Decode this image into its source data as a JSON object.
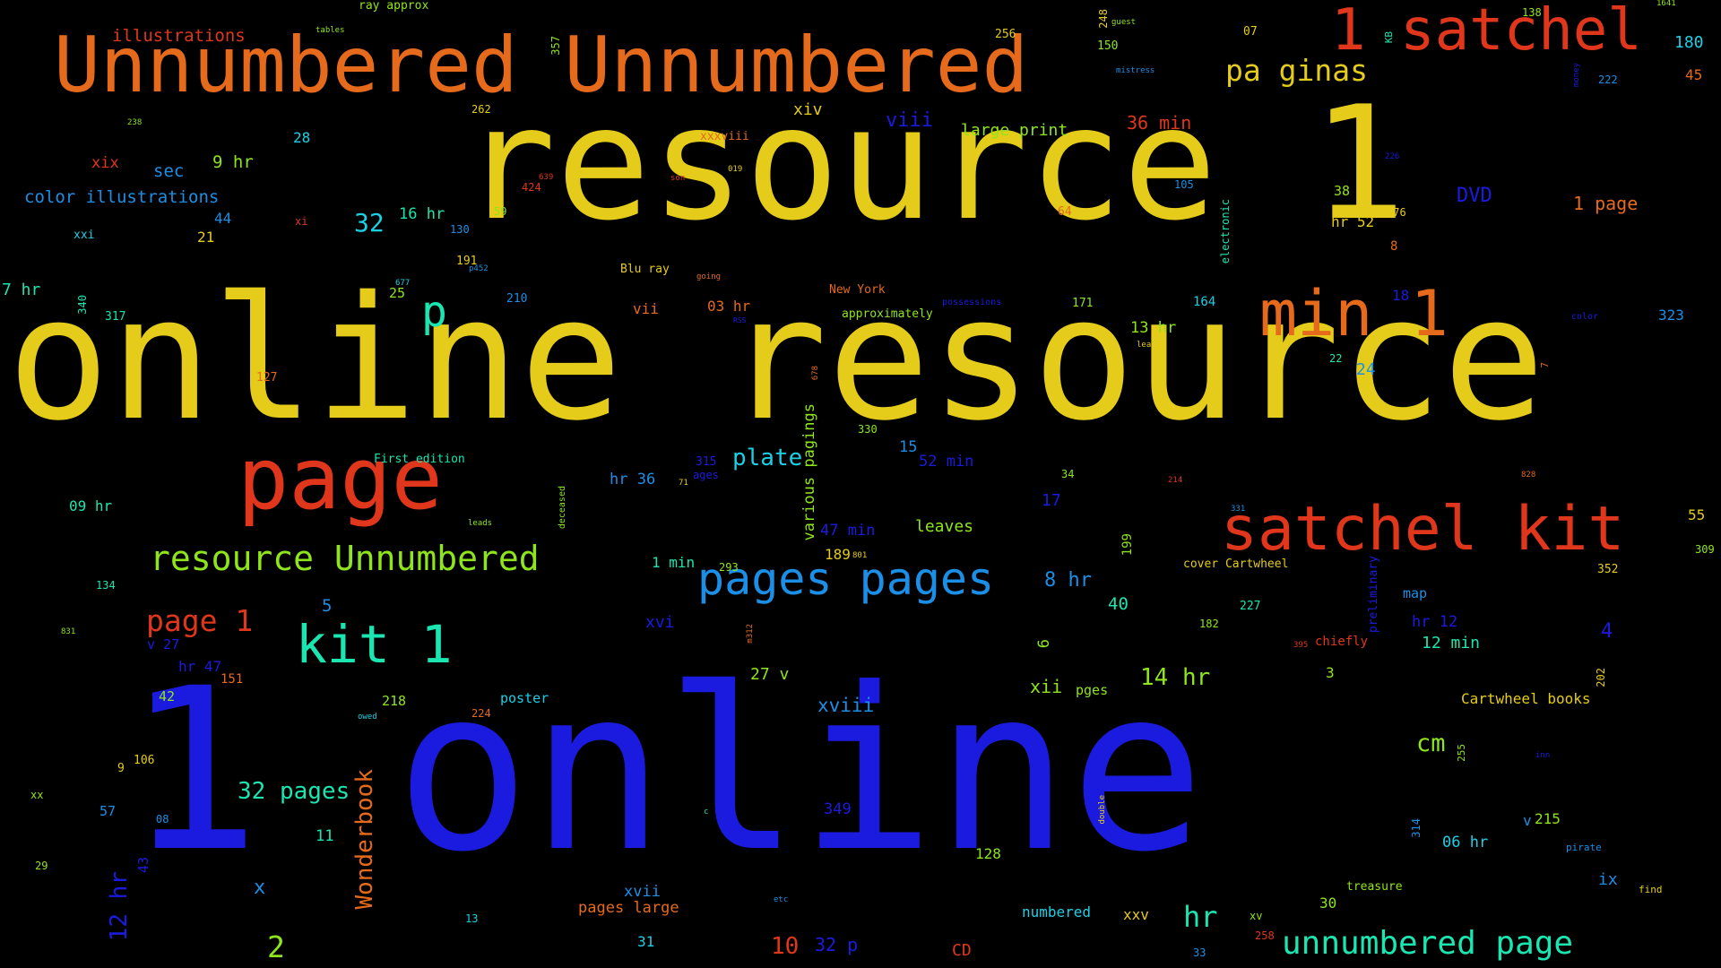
{
  "palette": {
    "yellow": "#e5cc1a",
    "blue": "#1b1be0",
    "red": "#e0361b",
    "orange": "#e56a1b",
    "green": "#8fe51b",
    "teal": "#1be5b0",
    "lightblue": "#1b8fe5",
    "cyan": "#1bd0e5"
  },
  "words": [
    {
      "text": "online resource"
    },
    {
      "text": "1 online"
    },
    {
      "text": "resource 1"
    },
    {
      "text": "Unnumbered Unnumbered"
    },
    {
      "text": "page"
    },
    {
      "text": "satchel kit"
    },
    {
      "text": "1 satchel"
    },
    {
      "text": "min 1"
    },
    {
      "text": "kit 1"
    },
    {
      "text": "pages pages"
    },
    {
      "text": "resource Unnumbered"
    },
    {
      "text": "unnumbered page"
    },
    {
      "text": "p"
    },
    {
      "text": "pa ginas"
    },
    {
      "text": "page 1"
    },
    {
      "text": "2"
    },
    {
      "text": "10"
    },
    {
      "text": "32 pages"
    },
    {
      "text": "hr"
    },
    {
      "text": "cm"
    },
    {
      "text": "Wonderbook"
    },
    {
      "text": "12 hr"
    },
    {
      "text": "plate"
    },
    {
      "text": "14 hr"
    },
    {
      "text": "32"
    },
    {
      "text": "DVD"
    },
    {
      "text": "illustrations"
    },
    {
      "text": "color illustrations"
    },
    {
      "text": "large print"
    },
    {
      "text": "36 min"
    },
    {
      "text": "viii"
    },
    {
      "text": "xiv"
    },
    {
      "text": "180"
    },
    {
      "text": "45"
    },
    {
      "text": "1 page"
    },
    {
      "text": "9 hr"
    },
    {
      "text": "sec"
    },
    {
      "text": "xix"
    },
    {
      "text": "28"
    },
    {
      "text": "16 hr"
    },
    {
      "text": "44"
    },
    {
      "text": "21"
    },
    {
      "text": "xxi"
    },
    {
      "text": "7 hr"
    },
    {
      "text": "25"
    },
    {
      "text": "317"
    },
    {
      "text": "340"
    },
    {
      "text": "127"
    },
    {
      "text": "09 hr"
    },
    {
      "text": "First edition"
    },
    {
      "text": "various pagings"
    },
    {
      "text": "hr 36"
    },
    {
      "text": "ages"
    },
    {
      "text": "315"
    },
    {
      "text": "52 min"
    },
    {
      "text": "15"
    },
    {
      "text": "47 min"
    },
    {
      "text": "leaves"
    },
    {
      "text": "189"
    },
    {
      "text": "1 min"
    },
    {
      "text": "293"
    },
    {
      "text": "8 hr"
    },
    {
      "text": "17"
    },
    {
      "text": "40"
    },
    {
      "text": "5"
    },
    {
      "text": "xvi"
    },
    {
      "text": "v 27"
    },
    {
      "text": "hr 47"
    },
    {
      "text": "151"
    },
    {
      "text": "42"
    },
    {
      "text": "218"
    },
    {
      "text": "poster"
    },
    {
      "text": "224"
    },
    {
      "text": "27 v"
    },
    {
      "text": "xviii"
    },
    {
      "text": "xii"
    },
    {
      "text": "pges"
    },
    {
      "text": "9"
    },
    {
      "text": "106"
    },
    {
      "text": "xx"
    },
    {
      "text": "57"
    },
    {
      "text": "08"
    },
    {
      "text": "43"
    },
    {
      "text": "29"
    },
    {
      "text": "11"
    },
    {
      "text": "x"
    },
    {
      "text": "13"
    },
    {
      "text": "xvii"
    },
    {
      "text": "pages large"
    },
    {
      "text": "31"
    },
    {
      "text": "32 p"
    },
    {
      "text": "CD"
    },
    {
      "text": "349"
    },
    {
      "text": "128"
    },
    {
      "text": "numbered"
    },
    {
      "text": "xxv"
    },
    {
      "text": "33"
    },
    {
      "text": "258"
    },
    {
      "text": "xv"
    },
    {
      "text": "treasure"
    },
    {
      "text": "30"
    },
    {
      "text": "06 hr"
    },
    {
      "text": "v"
    },
    {
      "text": "215"
    },
    {
      "text": "pirate"
    },
    {
      "text": "ix"
    },
    {
      "text": "find"
    },
    {
      "text": "314"
    },
    {
      "text": "Cartwheel books"
    },
    {
      "text": "202"
    },
    {
      "text": "3"
    },
    {
      "text": "12 min"
    },
    {
      "text": "hr 12"
    },
    {
      "text": "map"
    },
    {
      "text": "4"
    },
    {
      "text": "chiefly"
    },
    {
      "text": "395"
    },
    {
      "text": "preliminary"
    },
    {
      "text": "182"
    },
    {
      "text": "227"
    },
    {
      "text": "cover Cartwheel"
    },
    {
      "text": "352"
    },
    {
      "text": "309"
    },
    {
      "text": "55"
    },
    {
      "text": "199"
    },
    {
      "text": "801"
    },
    {
      "text": "13 hr"
    },
    {
      "text": "24"
    },
    {
      "text": "22"
    },
    {
      "text": "leaf"
    },
    {
      "text": "171"
    },
    {
      "text": "164"
    },
    {
      "text": "18"
    },
    {
      "text": "323"
    },
    {
      "text": "color"
    },
    {
      "text": "possessions"
    },
    {
      "text": "approximately"
    },
    {
      "text": "New York"
    },
    {
      "text": "03 hr"
    },
    {
      "text": "vii"
    },
    {
      "text": "going"
    },
    {
      "text": "Blu ray"
    },
    {
      "text": "p452"
    },
    {
      "text": "210"
    },
    {
      "text": "191"
    },
    {
      "text": "677"
    },
    {
      "text": "130"
    },
    {
      "text": "59"
    },
    {
      "text": "xi"
    },
    {
      "text": "64"
    },
    {
      "text": "son"
    },
    {
      "text": "639"
    },
    {
      "text": "424"
    },
    {
      "text": "019"
    },
    {
      "text": "xxxviii"
    },
    {
      "text": "105"
    },
    {
      "text": "electronic"
    },
    {
      "text": "38"
    },
    {
      "text": "hr 52"
    },
    {
      "text": "176"
    },
    {
      "text": "8"
    },
    {
      "text": "226"
    },
    {
      "text": "ray approx"
    },
    {
      "text": "tables"
    },
    {
      "text": "357"
    },
    {
      "text": "256"
    },
    {
      "text": "248"
    },
    {
      "text": "guest"
    },
    {
      "text": "150"
    },
    {
      "text": "07"
    },
    {
      "text": "KB"
    },
    {
      "text": "mistress"
    },
    {
      "text": "138"
    },
    {
      "text": "1641"
    },
    {
      "text": "money"
    },
    {
      "text": "222"
    },
    {
      "text": "262"
    },
    {
      "text": "238"
    },
    {
      "text": "678"
    },
    {
      "text": "330"
    },
    {
      "text": "71"
    },
    {
      "text": "34"
    },
    {
      "text": "214"
    },
    {
      "text": "331"
    },
    {
      "text": "828"
    },
    {
      "text": "deceased"
    },
    {
      "text": "leads"
    },
    {
      "text": "134"
    },
    {
      "text": "831"
    },
    {
      "text": "m312"
    },
    {
      "text": "owed"
    },
    {
      "text": "iii"
    },
    {
      "text": "c"
    },
    {
      "text": "double"
    },
    {
      "text": "255"
    },
    {
      "text": "inn"
    },
    {
      "text": "etc"
    },
    {
      "text": "6"
    },
    {
      "text": "RSS"
    },
    {
      "text": "7"
    }
  ]
}
